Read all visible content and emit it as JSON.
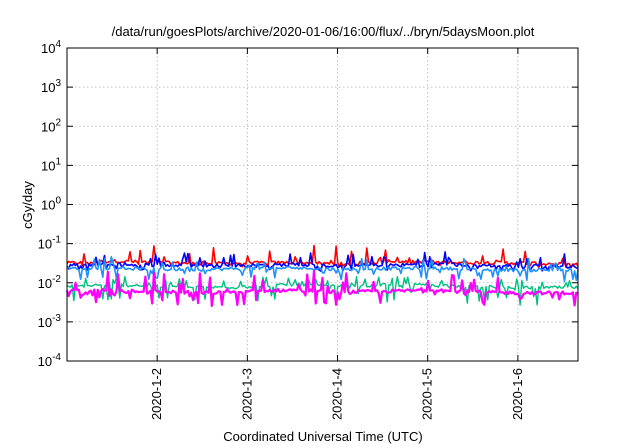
{
  "chart_data": {
    "type": "line",
    "title": "/data/run/goesPlots/archive/2020-01-06/16:00/flux/../bryn/5daysMoon.plot",
    "xlabel": "Coordinated Universal Time (UTC)",
    "ylabel": "cGy/day",
    "yscale": "log",
    "ylim": [
      0.0001,
      10000
    ],
    "xlim": [
      "2020-01-01 00:00",
      "2020-01-06 16:00"
    ],
    "grid": true,
    "y_ticks": [
      {
        "exp": "-4",
        "value": 0.0001
      },
      {
        "exp": "-3",
        "value": 0.001
      },
      {
        "exp": "-2",
        "value": 0.01
      },
      {
        "exp": "-1",
        "value": 0.1
      },
      {
        "exp": "0",
        "value": 1
      },
      {
        "exp": "1",
        "value": 10
      },
      {
        "exp": "2",
        "value": 100
      },
      {
        "exp": "3",
        "value": 1000
      },
      {
        "exp": "4",
        "value": 10000
      }
    ],
    "y_tick_base": "10",
    "x_ticks": [
      {
        "label": "2020-1-2",
        "value": "2020-01-02 00:00"
      },
      {
        "label": "2020-1-3",
        "value": "2020-01-03 00:00"
      },
      {
        "label": "2020-1-4",
        "value": "2020-01-04 00:00"
      },
      {
        "label": "2020-1-5",
        "value": "2020-01-05 00:00"
      },
      {
        "label": "2020-1-6",
        "value": "2020-01-06 00:00"
      }
    ],
    "series": [
      {
        "color": "#ff0000",
        "width": 1.6,
        "spikes": 0.45,
        "dips": 0.1,
        "x": [
          "2020-01-01 00:00",
          "2020-01-01 12:00",
          "2020-01-02 00:00",
          "2020-01-02 12:00",
          "2020-01-03 00:00",
          "2020-01-03 12:00",
          "2020-01-04 00:00",
          "2020-01-04 12:00",
          "2020-01-05 00:00",
          "2020-01-05 12:00",
          "2020-01-06 00:00",
          "2020-01-06 16:00"
        ],
        "y": [
          0.032,
          0.036,
          0.033,
          0.031,
          0.032,
          0.033,
          0.031,
          0.033,
          0.035,
          0.033,
          0.032,
          0.03
        ]
      },
      {
        "color": "#0000ff",
        "width": 1.6,
        "spikes": 0.35,
        "dips": 0.15,
        "x": [
          "2020-01-01 00:00",
          "2020-01-01 12:00",
          "2020-01-02 00:00",
          "2020-01-02 12:00",
          "2020-01-03 00:00",
          "2020-01-03 12:00",
          "2020-01-04 00:00",
          "2020-01-04 12:00",
          "2020-01-05 00:00",
          "2020-01-05 12:00",
          "2020-01-06 00:00",
          "2020-01-06 16:00"
        ],
        "y": [
          0.028,
          0.03,
          0.028,
          0.027,
          0.028,
          0.029,
          0.027,
          0.028,
          0.03,
          0.028,
          0.027,
          0.026
        ]
      },
      {
        "color": "#1e90ff",
        "width": 1.6,
        "spikes": 0.3,
        "dips": 0.3,
        "x": [
          "2020-01-01 00:00",
          "2020-01-01 12:00",
          "2020-01-02 00:00",
          "2020-01-02 12:00",
          "2020-01-03 00:00",
          "2020-01-03 12:00",
          "2020-01-04 00:00",
          "2020-01-04 12:00",
          "2020-01-05 00:00",
          "2020-01-05 12:00",
          "2020-01-06 00:00",
          "2020-01-06 16:00"
        ],
        "y": [
          0.023,
          0.024,
          0.022,
          0.022,
          0.023,
          0.024,
          0.022,
          0.023,
          0.024,
          0.022,
          0.021,
          0.021
        ]
      },
      {
        "color": "#00c080",
        "width": 1.4,
        "spikes": 0.25,
        "dips": 0.45,
        "x": [
          "2020-01-01 00:00",
          "2020-01-01 12:00",
          "2020-01-02 00:00",
          "2020-01-02 12:00",
          "2020-01-03 00:00",
          "2020-01-03 12:00",
          "2020-01-04 00:00",
          "2020-01-04 12:00",
          "2020-01-05 00:00",
          "2020-01-05 12:00",
          "2020-01-06 00:00",
          "2020-01-06 16:00"
        ],
        "y": [
          0.008,
          0.009,
          0.008,
          0.0075,
          0.008,
          0.009,
          0.008,
          0.0085,
          0.009,
          0.008,
          0.0075,
          0.0075
        ]
      },
      {
        "color": "#ff00ff",
        "width": 2.2,
        "spikes": 0.55,
        "dips": 0.35,
        "x": [
          "2020-01-01 00:00",
          "2020-01-01 12:00",
          "2020-01-02 00:00",
          "2020-01-02 12:00",
          "2020-01-03 00:00",
          "2020-01-03 12:00",
          "2020-01-04 00:00",
          "2020-01-04 12:00",
          "2020-01-05 00:00",
          "2020-01-05 12:00",
          "2020-01-06 00:00",
          "2020-01-06 16:00"
        ],
        "y": [
          0.006,
          0.0065,
          0.006,
          0.0055,
          0.006,
          0.0065,
          0.0058,
          0.006,
          0.0065,
          0.0058,
          0.0055,
          0.0055
        ]
      }
    ]
  }
}
